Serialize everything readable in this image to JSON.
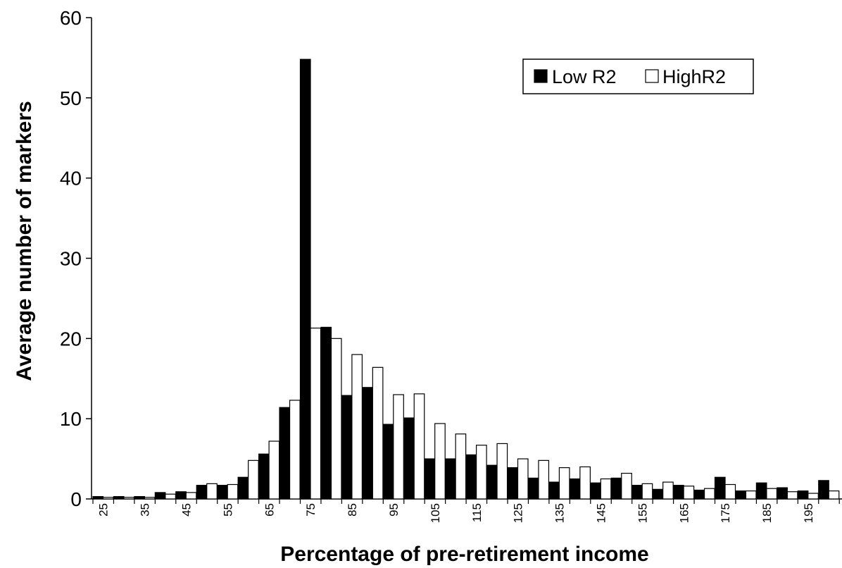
{
  "chart_data": {
    "type": "bar",
    "title": "",
    "xlabel": "Percentage of pre-retirement income",
    "ylabel": "Average number of markers",
    "ylim": [
      0,
      60
    ],
    "yticks": [
      "0",
      "10",
      "20",
      "30",
      "40",
      "50",
      "60"
    ],
    "x": [
      25,
      30,
      35,
      40,
      45,
      50,
      55,
      60,
      65,
      70,
      75,
      80,
      85,
      90,
      95,
      100,
      105,
      110,
      115,
      120,
      125,
      130,
      135,
      140,
      145,
      150,
      155,
      160,
      165,
      170,
      175,
      180,
      185,
      190,
      195,
      200
    ],
    "xtick_labels": [
      "25",
      "35",
      "45",
      "55",
      "65",
      "75",
      "85",
      "95",
      "105",
      "115",
      "125",
      "135",
      "145",
      "155",
      "165",
      "175",
      "185",
      "195"
    ],
    "grid": false,
    "legend_position": "top-right",
    "series": [
      {
        "name": "Low R2",
        "color": "#000000",
        "values": [
          0.3,
          0.3,
          0.3,
          0.8,
          0.9,
          1.7,
          1.7,
          2.7,
          5.6,
          11.4,
          54.8,
          21.4,
          12.9,
          13.9,
          9.3,
          10.1,
          5.0,
          5.0,
          5.5,
          4.2,
          3.9,
          2.6,
          2.1,
          2.5,
          2.0,
          2.6,
          1.7,
          1.2,
          1.7,
          1.1,
          2.7,
          1.0,
          2.0,
          1.4,
          1.0,
          2.3
        ]
      },
      {
        "name": "HighR2",
        "color": "#ffffff",
        "values": [
          0.2,
          0.2,
          0.2,
          0.6,
          0.8,
          1.9,
          1.8,
          4.8,
          7.2,
          12.3,
          21.3,
          20.0,
          18.0,
          16.4,
          13.0,
          13.1,
          9.4,
          8.1,
          6.7,
          6.9,
          5.0,
          4.8,
          3.9,
          4.0,
          2.5,
          3.2,
          1.9,
          2.1,
          1.6,
          1.3,
          1.8,
          1.0,
          1.3,
          0.9,
          0.7,
          1.0
        ]
      }
    ]
  }
}
